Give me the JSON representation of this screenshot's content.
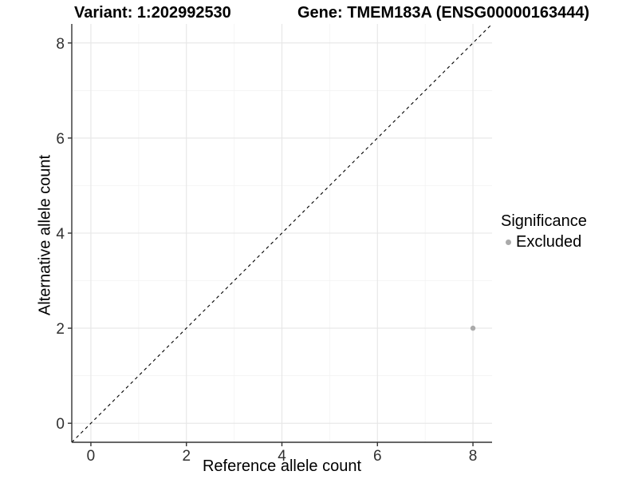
{
  "chart_data": {
    "type": "scatter",
    "title_left": "Variant: 1:202992530",
    "title_right": "Gene: TMEM183A (ENSG00000163444)",
    "xlabel": "Reference allele count",
    "ylabel": "Alternative allele count",
    "xlim": [
      -0.4,
      8.4
    ],
    "ylim": [
      -0.4,
      8.4
    ],
    "x_ticks": [
      0,
      2,
      4,
      6,
      8
    ],
    "y_ticks": [
      0,
      2,
      4,
      6,
      8
    ],
    "x_minor_ticks": [
      1,
      3,
      5,
      7
    ],
    "y_minor_ticks": [
      1,
      3,
      5,
      7
    ],
    "grid": true,
    "points": [
      {
        "x": 8,
        "y": 2,
        "series": "Excluded"
      }
    ],
    "reference_line": {
      "kind": "identity",
      "style": "dashed",
      "color": "#000000"
    },
    "legend": {
      "title": "Significance",
      "position": "right",
      "entries": [
        {
          "label": "Excluded",
          "color": "#aaaaaa"
        }
      ]
    },
    "colors": {
      "point": "#aaaaaa",
      "grid_major": "#e6e6e6",
      "grid_minor": "#f2f2f2",
      "axis_line": "#333333",
      "tick_label": "#303030",
      "background": "#ffffff"
    }
  }
}
